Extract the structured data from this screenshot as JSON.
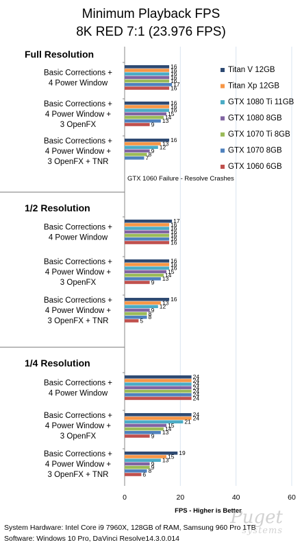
{
  "chart_data": {
    "type": "bar",
    "orientation": "horizontal",
    "title": "Minimum Playback FPS",
    "subtitle": "8K RED 7:1 (23.976 FPS)",
    "xlabel": "FPS - Higher is Better",
    "xlim": [
      0,
      60
    ],
    "xticks": [
      0,
      20,
      40,
      60
    ],
    "grid": true,
    "legend_position": "right",
    "series": [
      {
        "name": "Titan V 12GB",
        "color": "#2e4a72"
      },
      {
        "name": "Titan Xp 12GB",
        "color": "#f79646"
      },
      {
        "name": "GTX 1080 Ti 11GB",
        "color": "#4bacc6"
      },
      {
        "name": "GTX 1080 8GB",
        "color": "#8064a2"
      },
      {
        "name": "GTX 1070 Ti 8GB",
        "color": "#9bbb59"
      },
      {
        "name": "GTX 1070 8GB",
        "color": "#4f81bd"
      },
      {
        "name": "GTX 1060 6GB",
        "color": "#c0504d"
      }
    ],
    "sections": [
      {
        "label": "Full Resolution",
        "note": "GTX 1060 Failure - Resolve Crashes",
        "groups": [
          {
            "label": [
              "Basic Corrections +",
              "4 Power Window"
            ],
            "values": [
              16,
              16,
              16,
              16,
              16,
              17,
              16
            ]
          },
          {
            "label": [
              "Basic Corrections +",
              "4 Power Window +",
              "3 OpenFX"
            ],
            "values": [
              16,
              16,
              16,
              15,
              14,
              13,
              9
            ]
          },
          {
            "label": [
              "Basic Corrections +",
              "4 Power Window +",
              "3 OpenFX + TNR"
            ],
            "values": [
              16,
              13,
              12,
              9,
              8,
              7,
              null
            ]
          }
        ]
      },
      {
        "label": "1/2 Resolution",
        "groups": [
          {
            "label": [
              "Basic Corrections +",
              "4 Power Window"
            ],
            "values": [
              17,
              16,
              16,
              16,
              16,
              16,
              16
            ]
          },
          {
            "label": [
              "Basic Corrections +",
              "4 Power Window +",
              "3 OpenFX"
            ],
            "values": [
              16,
              16,
              16,
              15,
              14,
              13,
              9
            ]
          },
          {
            "label": [
              "Basic Corrections +",
              "4 Power Window +",
              "3 OpenFX + TNR"
            ],
            "values": [
              16,
              13,
              12,
              9,
              8,
              8,
              5
            ]
          }
        ]
      },
      {
        "label": "1/4 Resolution",
        "groups": [
          {
            "label": [
              "Basic Corrections +",
              "4 Power Window"
            ],
            "values": [
              24,
              24,
              24,
              24,
              24,
              24,
              24
            ]
          },
          {
            "label": [
              "Basic Corrections +",
              "4 Power Window +",
              "3 OpenFX"
            ],
            "values": [
              24,
              24,
              21,
              15,
              14,
              13,
              9
            ]
          },
          {
            "label": [
              "Basic Corrections +",
              "4 Power Window +",
              "3 OpenFX + TNR"
            ],
            "values": [
              19,
              15,
              13,
              9,
              9,
              8,
              6
            ]
          }
        ]
      }
    ]
  },
  "footer": {
    "line1": "System Hardware: Intel Core i9 7960X,  128GB of RAM, Samsung 960 Pro 1TB",
    "line2": "Software: Windows 10 Pro, DaVinci Resolve14.3.0.014"
  },
  "logo": {
    "word1": "Puget",
    "word2": "systems"
  }
}
